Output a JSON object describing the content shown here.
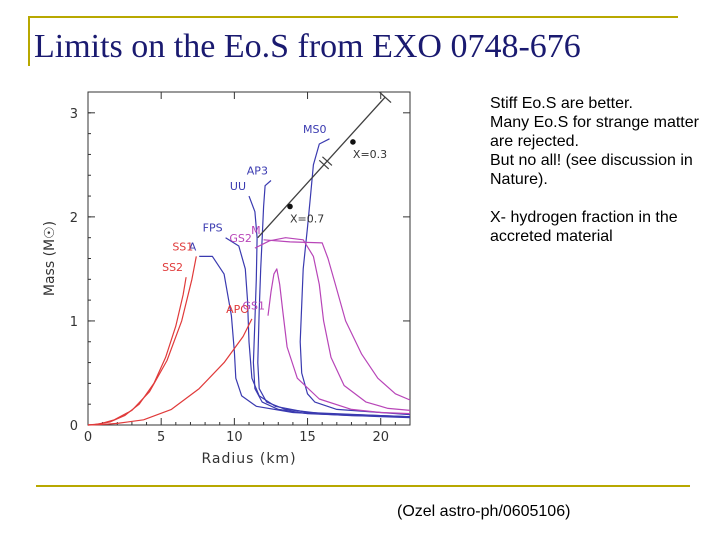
{
  "slide": {
    "title": "Limits on the Eo.S from EXO 0748-676",
    "notes": [
      "Stiff Eo.S are better.\nMany Eo.S for strange matter are rejected.\nBut no all! (see discussion in Nature).",
      "X- hydrogen fraction in the accreted material"
    ],
    "credit": "(Ozel astro-ph/0605106)",
    "accent_color": "#b8a800",
    "title_color": "#1a1a70"
  },
  "chart_data": {
    "type": "line",
    "xlabel": "Radius (km)",
    "ylabel": "Mass (M☉)",
    "xlim": [
      0,
      22
    ],
    "ylim": [
      0,
      3.2
    ],
    "xticks": [
      0,
      5,
      10,
      15,
      20
    ],
    "yticks": [
      0,
      1,
      2,
      3
    ],
    "grid": false,
    "series": [
      {
        "name": "MS0",
        "color": "#3a3ab0",
        "x": [
          16.5,
          15.8,
          15.4,
          15.2,
          15.0,
          14.7,
          14.5,
          14.6,
          15.0,
          15.5,
          17.0,
          20.0,
          22.0
        ],
        "y": [
          2.75,
          2.7,
          2.5,
          2.2,
          1.9,
          1.5,
          0.8,
          0.5,
          0.3,
          0.22,
          0.15,
          0.12,
          0.1
        ]
      },
      {
        "name": "AP3",
        "color": "#3a3ab0",
        "x": [
          12.5,
          12.1,
          12.0,
          11.9,
          11.8,
          11.7,
          11.6,
          11.7,
          12.2,
          13.5,
          16.0,
          20.0,
          22.0
        ],
        "y": [
          2.35,
          2.3,
          2.1,
          1.8,
          1.5,
          1.1,
          0.6,
          0.35,
          0.22,
          0.15,
          0.11,
          0.09,
          0.08
        ]
      },
      {
        "name": "UU",
        "color": "#3a3ab0",
        "x": [
          11.0,
          11.4,
          11.55,
          11.5,
          11.4,
          11.3,
          11.4,
          11.9,
          13.0,
          15.0,
          20.0,
          22.0
        ],
        "y": [
          2.2,
          2.05,
          1.8,
          1.4,
          1.0,
          0.6,
          0.35,
          0.22,
          0.15,
          0.11,
          0.08,
          0.07
        ]
      },
      {
        "name": "FPS",
        "color": "#3a3ab0",
        "x": [
          9.4,
          10.3,
          10.75,
          10.9,
          11.0,
          11.2,
          11.7,
          12.8,
          15.0,
          20.0,
          22.0
        ],
        "y": [
          1.8,
          1.72,
          1.5,
          1.2,
          0.8,
          0.45,
          0.28,
          0.18,
          0.12,
          0.09,
          0.08
        ]
      },
      {
        "name": "A",
        "color": "#3a3ab0",
        "x": [
          7.6,
          8.5,
          9.3,
          9.8,
          10.0,
          10.1,
          10.5,
          11.5,
          14.0,
          18.0,
          22.0
        ],
        "y": [
          1.62,
          1.62,
          1.45,
          1.05,
          0.7,
          0.45,
          0.28,
          0.18,
          0.12,
          0.09,
          0.08
        ]
      },
      {
        "name": "SS2",
        "color": "#e03a3a",
        "x": [
          6.7,
          6.5,
          6.0,
          5.3,
          4.5,
          3.5,
          2.5,
          1.5,
          0.5,
          0.0
        ],
        "y": [
          1.42,
          1.25,
          0.95,
          0.65,
          0.4,
          0.2,
          0.09,
          0.03,
          0.005,
          0.0
        ]
      },
      {
        "name": "SS1",
        "color": "#e03a3a",
        "x": [
          7.4,
          7.1,
          6.4,
          5.4,
          4.2,
          3.0,
          1.8,
          0.8,
          0.0
        ],
        "y": [
          1.62,
          1.4,
          1.0,
          0.62,
          0.32,
          0.14,
          0.05,
          0.01,
          0.0
        ]
      },
      {
        "name": "APO",
        "color": "#e03a3a",
        "x": [
          11.2,
          10.6,
          9.3,
          7.6,
          5.7,
          3.8,
          2.0,
          0.8,
          0.0
        ],
        "y": [
          1.02,
          0.85,
          0.6,
          0.35,
          0.15,
          0.05,
          0.015,
          0.003,
          0.0
        ]
      },
      {
        "name": "GS1",
        "color": "#b845b8",
        "x": [
          12.3,
          12.5,
          12.7,
          12.9,
          13.1,
          13.3,
          13.6,
          14.3,
          15.8,
          18.0,
          20.0,
          22.0
        ],
        "y": [
          1.05,
          1.28,
          1.45,
          1.5,
          1.35,
          1.1,
          0.75,
          0.45,
          0.25,
          0.15,
          0.12,
          0.11
        ]
      },
      {
        "name": "GS2",
        "color": "#b845b8",
        "x": [
          11.4,
          12.4,
          13.5,
          14.7,
          15.4,
          15.8,
          16.1,
          16.6,
          17.5,
          19.0,
          20.5,
          22.0
        ],
        "y": [
          1.7,
          1.77,
          1.8,
          1.78,
          1.62,
          1.35,
          1.0,
          0.65,
          0.38,
          0.22,
          0.16,
          0.14
        ]
      },
      {
        "name": "M",
        "color": "#b845b8",
        "x": [
          12.0,
          13.8,
          16.0,
          16.4,
          16.9,
          17.6,
          18.7,
          19.8,
          21.0,
          22.0
        ],
        "y": [
          1.78,
          1.76,
          1.75,
          1.6,
          1.35,
          1.0,
          0.68,
          0.45,
          0.3,
          0.24
        ]
      }
    ],
    "constraint": {
      "color": "#404040",
      "x": [
        11.6,
        20.3
      ],
      "y": [
        1.8,
        3.15
      ],
      "markers": [
        {
          "label": "X=0.3",
          "x": 18.1,
          "y": 2.72
        },
        {
          "label": "X=0.7",
          "x": 13.8,
          "y": 2.1
        }
      ]
    }
  }
}
